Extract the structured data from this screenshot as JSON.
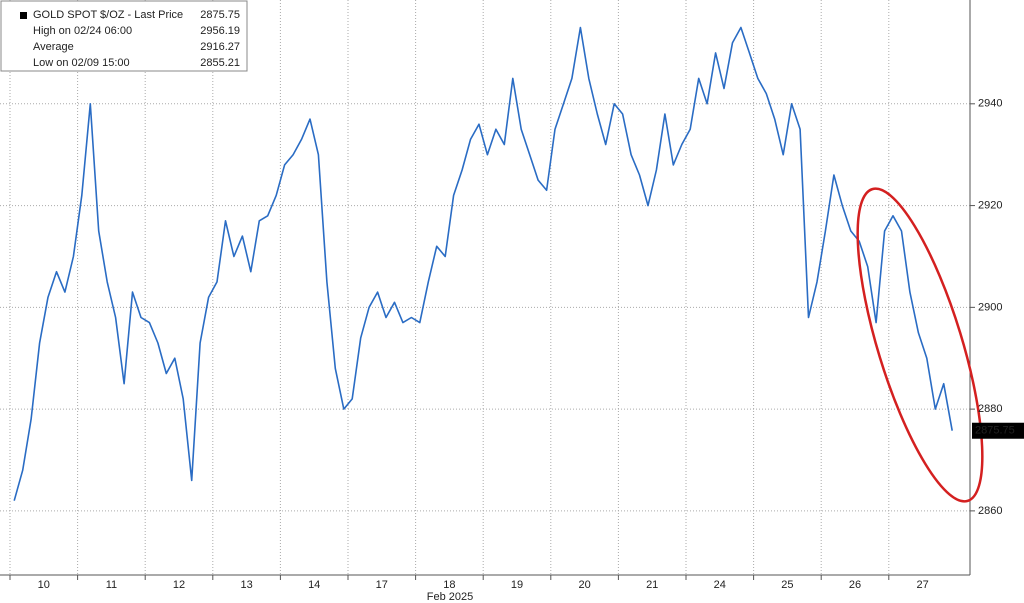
{
  "chart_data": {
    "type": "line",
    "x_label": "Feb 2025",
    "categories": [
      "10",
      "11",
      "12",
      "13",
      "14",
      "17",
      "18",
      "19",
      "20",
      "21",
      "24",
      "25",
      "26",
      "27"
    ],
    "series": [
      {
        "color": "#2a6cc4",
        "values": [
          [
            2862,
            2868,
            2878,
            2893,
            2902,
            2907,
            2903,
            2910
          ],
          [
            2922,
            2940,
            2915,
            2905,
            2898,
            2885,
            2903,
            2898
          ],
          [
            2897,
            2893,
            2887,
            2890,
            2882,
            2866,
            2893,
            2902
          ],
          [
            2905,
            2917,
            2910,
            2914,
            2907,
            2917,
            2918,
            2922
          ],
          [
            2928,
            2930,
            2933,
            2937,
            2930,
            2905,
            2888,
            2880
          ],
          [
            2882,
            2894,
            2900,
            2903,
            2898,
            2901,
            2897,
            2898
          ],
          [
            2897,
            2905,
            2912,
            2910,
            2922,
            2927,
            2933,
            2936
          ],
          [
            2930,
            2935,
            2932,
            2945,
            2935,
            2930,
            2925,
            2923
          ],
          [
            2935,
            2940,
            2945,
            2955,
            2945,
            2938,
            2932,
            2940
          ],
          [
            2938,
            2930,
            2926,
            2920,
            2927,
            2938,
            2928,
            2932
          ],
          [
            2935,
            2945,
            2940,
            2950,
            2943,
            2952,
            2955,
            2950
          ],
          [
            2945,
            2942,
            2937,
            2930,
            2940,
            2935,
            2898,
            2905
          ],
          [
            2915,
            2926,
            2920,
            2915,
            2913,
            2908,
            2897,
            2915
          ],
          [
            2918,
            2915,
            2903,
            2895,
            2890,
            2880,
            2885,
            2875.75
          ]
        ]
      }
    ],
    "legend": [
      {
        "label": "GOLD SPOT $/OZ - Last Price",
        "value": 2875.75
      },
      {
        "label": "High on 02/24 06:00",
        "value": 2956.19
      },
      {
        "label": "Average",
        "value": 2916.27
      },
      {
        "label": "Low on 02/09 15:00",
        "value": 2855.21
      }
    ],
    "ylim": [
      2847.4,
      2960.4
    ],
    "yticks": [
      2860,
      2880,
      2900,
      2920,
      2940
    ],
    "grid": true
  }
}
